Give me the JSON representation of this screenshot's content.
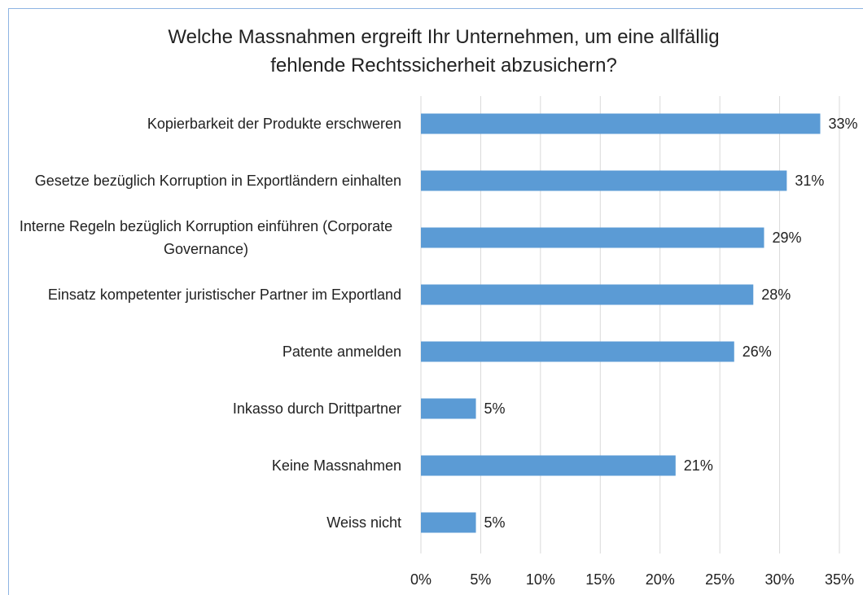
{
  "chart_data": {
    "type": "barh",
    "title": "Welche Massnahmen ergreift Ihr Unternehmen, um eine allfällig fehlende Rechtssicherheit abzusichern?",
    "categories": [
      "Kopierbarkeit der Produkte erschweren",
      "Gesetze bezüglich Korruption in Exportländern einhalten",
      "Interne Regeln bezüglich Korruption einführen (Corporate Governance)",
      "Einsatz kompetenter juristischer Partner im Exportland",
      "Patente anmelden",
      "Inkasso durch Drittpartner",
      "Keine Massnahmen",
      "Weiss nicht"
    ],
    "values": [
      33.4,
      30.6,
      28.7,
      27.8,
      26.2,
      4.6,
      21.3,
      4.6
    ],
    "value_labels": [
      "33%",
      "31%",
      "29%",
      "28%",
      "26%",
      "5%",
      "21%",
      "5%"
    ],
    "color": "#5b9bd5",
    "xlim": [
      0,
      35
    ],
    "xticks": [
      {
        "value": 0,
        "label": "0%"
      },
      {
        "value": 5,
        "label": "5%"
      },
      {
        "value": 10,
        "label": "10%"
      },
      {
        "value": 15,
        "label": "15%"
      },
      {
        "value": 20,
        "label": "20%"
      },
      {
        "value": 25,
        "label": "25%"
      },
      {
        "value": 30,
        "label": "30%"
      },
      {
        "value": 35,
        "label": "35%"
      }
    ],
    "grid": true
  }
}
